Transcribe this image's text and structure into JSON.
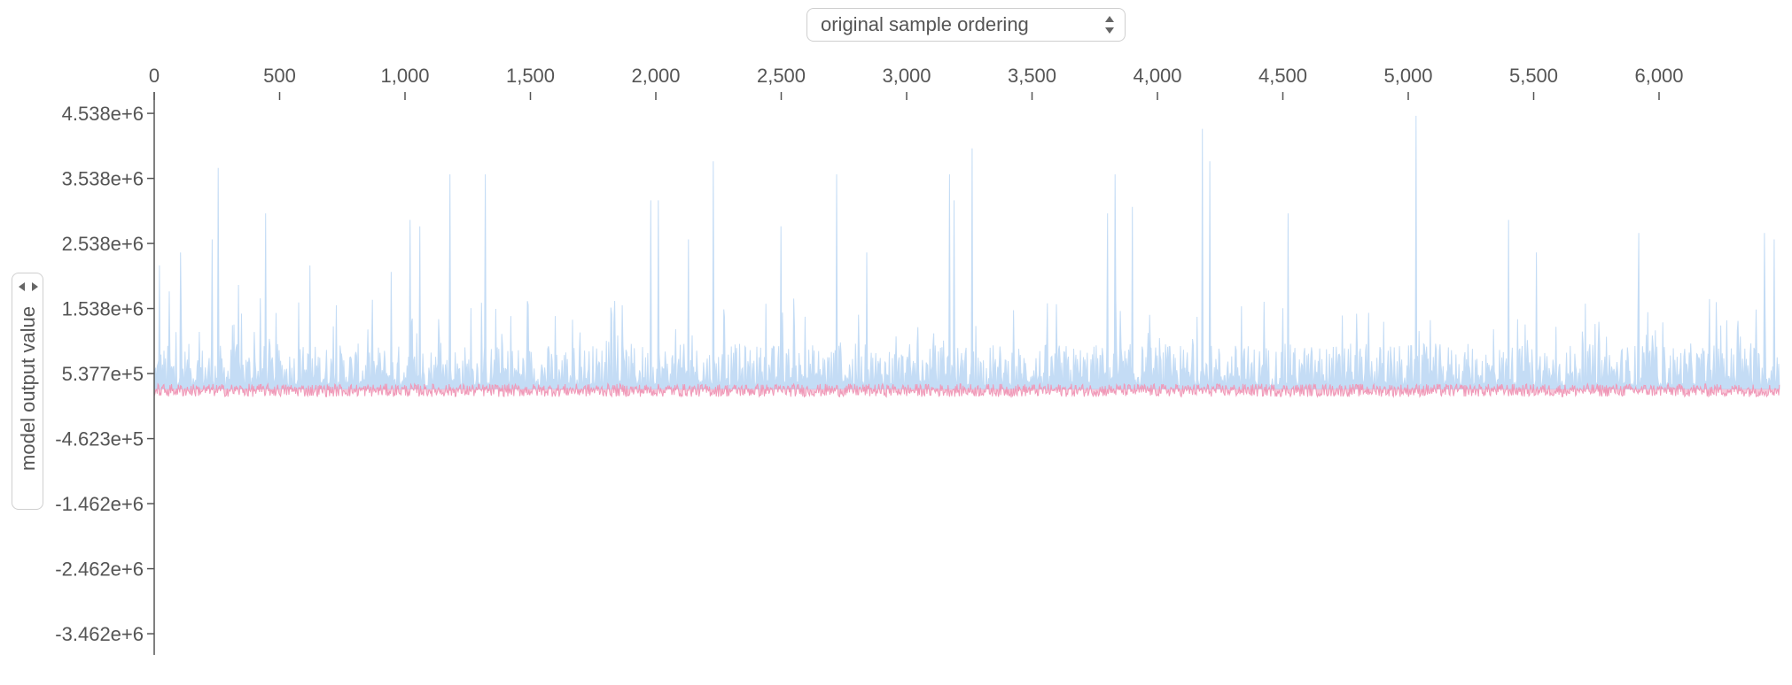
{
  "controls": {
    "ordering_select_value": "original sample ordering",
    "yaxis_select_value": "model output value"
  },
  "colors": {
    "upper_series": "#c4dcf5",
    "lower_series": "#f099b8",
    "axis": "#555555"
  },
  "chart_data": {
    "type": "area",
    "title": "",
    "xlabel": "",
    "ylabel": "model output value",
    "xlim": [
      0,
      6480
    ],
    "ylim": [
      -3700000.0,
      4720000.0
    ],
    "x_ticks": [
      0,
      500,
      1000,
      1500,
      2000,
      2500,
      3000,
      3500,
      4000,
      4500,
      5000,
      5500,
      6000
    ],
    "x_tick_labels": [
      "0",
      "500",
      "1,000",
      "1,500",
      "2,000",
      "2,500",
      "3,000",
      "3,500",
      "4,000",
      "4,500",
      "5,000",
      "5,500",
      "6,000"
    ],
    "y_ticks": [
      4538000,
      3538000,
      2538000,
      1538000,
      537700,
      -462300,
      -1462000,
      -2462000,
      -3462000
    ],
    "y_tick_labels": [
      "4.538e+6",
      "3.538e+6",
      "2.538e+6",
      "1.538e+6",
      "5.377e+5",
      "-4.623e+5",
      "-1.462e+6",
      "-2.462e+6",
      "-3.462e+6"
    ],
    "grid": false,
    "x_axis_position": "top",
    "n_samples": 6480,
    "baseline_value": 300000,
    "series": [
      {
        "typical_low": 350000,
        "typical_high": 1000000,
        "peaks": [
          {
            "x": 20,
            "y": 2200000
          },
          {
            "x": 60,
            "y": 1800000
          },
          {
            "x": 105,
            "y": 2400000
          },
          {
            "x": 230,
            "y": 2600000
          },
          {
            "x": 255,
            "y": 3700000
          },
          {
            "x": 335,
            "y": 1900000
          },
          {
            "x": 445,
            "y": 3000000
          },
          {
            "x": 620,
            "y": 2200000
          },
          {
            "x": 945,
            "y": 2100000
          },
          {
            "x": 1020,
            "y": 2900000
          },
          {
            "x": 1060,
            "y": 2800000
          },
          {
            "x": 1180,
            "y": 3600000
          },
          {
            "x": 1320,
            "y": 3600000
          },
          {
            "x": 1980,
            "y": 3200000
          },
          {
            "x": 2010,
            "y": 3200000
          },
          {
            "x": 2130,
            "y": 2600000
          },
          {
            "x": 2230,
            "y": 3800000
          },
          {
            "x": 2500,
            "y": 2800000
          },
          {
            "x": 2720,
            "y": 3600000
          },
          {
            "x": 2840,
            "y": 2400000
          },
          {
            "x": 3170,
            "y": 3600000
          },
          {
            "x": 3190,
            "y": 3200000
          },
          {
            "x": 3260,
            "y": 4000000
          },
          {
            "x": 3800,
            "y": 3000000
          },
          {
            "x": 3830,
            "y": 3600000
          },
          {
            "x": 3900,
            "y": 3100000
          },
          {
            "x": 4180,
            "y": 4300000
          },
          {
            "x": 4210,
            "y": 3800000
          },
          {
            "x": 4520,
            "y": 3000000
          },
          {
            "x": 5030,
            "y": 4500000
          },
          {
            "x": 5400,
            "y": 2900000
          },
          {
            "x": 5510,
            "y": 2400000
          },
          {
            "x": 5920,
            "y": 2700000
          },
          {
            "x": 6420,
            "y": 2700000
          },
          {
            "x": 6460,
            "y": 2600000
          }
        ]
      },
      {
        "typical_low": 180000,
        "typical_high": 380000
      }
    ]
  }
}
